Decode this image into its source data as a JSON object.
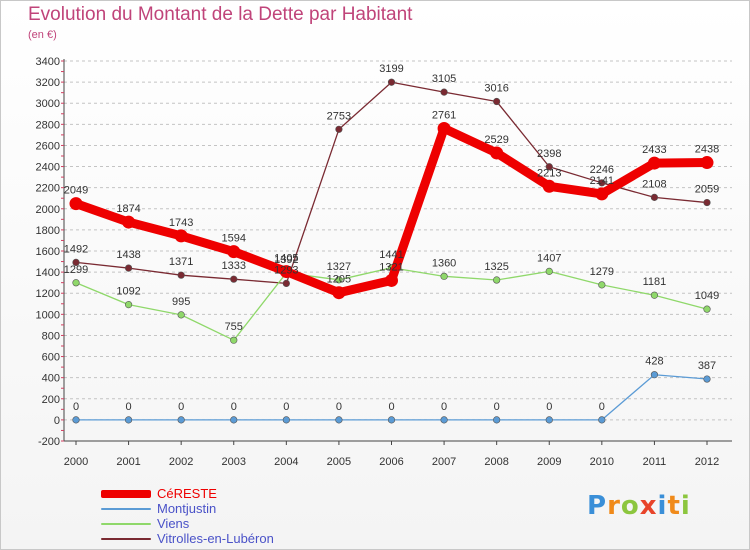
{
  "chart_data": {
    "type": "line",
    "title": "Evolution du Montant de la Dette par Habitant",
    "subtitle": "(en €)",
    "x": [
      "2000",
      "2001",
      "2002",
      "2003",
      "2004",
      "2005",
      "2006",
      "2007",
      "2008",
      "2009",
      "2010",
      "2011",
      "2012"
    ],
    "ylim": [
      -200,
      3400
    ],
    "yticks": [
      -200,
      0,
      200,
      400,
      600,
      800,
      1000,
      1200,
      1400,
      1600,
      1800,
      2000,
      2200,
      2400,
      2600,
      2800,
      3000,
      3200,
      3400
    ],
    "grid": "horizontal-dashed",
    "legend_position": "bottom-left",
    "series": [
      {
        "name": "CéRESTE",
        "color": "#ee0000",
        "values": [
          2049,
          1874,
          1743,
          1594,
          1405,
          1205,
          1321,
          2761,
          2529,
          2213,
          2141,
          2433,
          2438
        ]
      },
      {
        "name": "Montjustin",
        "color": "#5b9bd5",
        "values": [
          0,
          0,
          0,
          0,
          0,
          0,
          0,
          0,
          0,
          0,
          0,
          428,
          387
        ]
      },
      {
        "name": "Viens",
        "color": "#8fd86a",
        "values": [
          1299,
          1092,
          995,
          755,
          1392,
          1327,
          1441,
          1360,
          1325,
          1407,
          1279,
          1181,
          1049
        ]
      },
      {
        "name": "Vitrolles-en-Lubéron",
        "color": "#7a2a32",
        "values": [
          1492,
          1438,
          1371,
          1333,
          1293,
          2753,
          3199,
          3105,
          3016,
          2398,
          2246,
          2108,
          2059
        ]
      }
    ]
  },
  "logo": {
    "text": "Proxiti"
  }
}
